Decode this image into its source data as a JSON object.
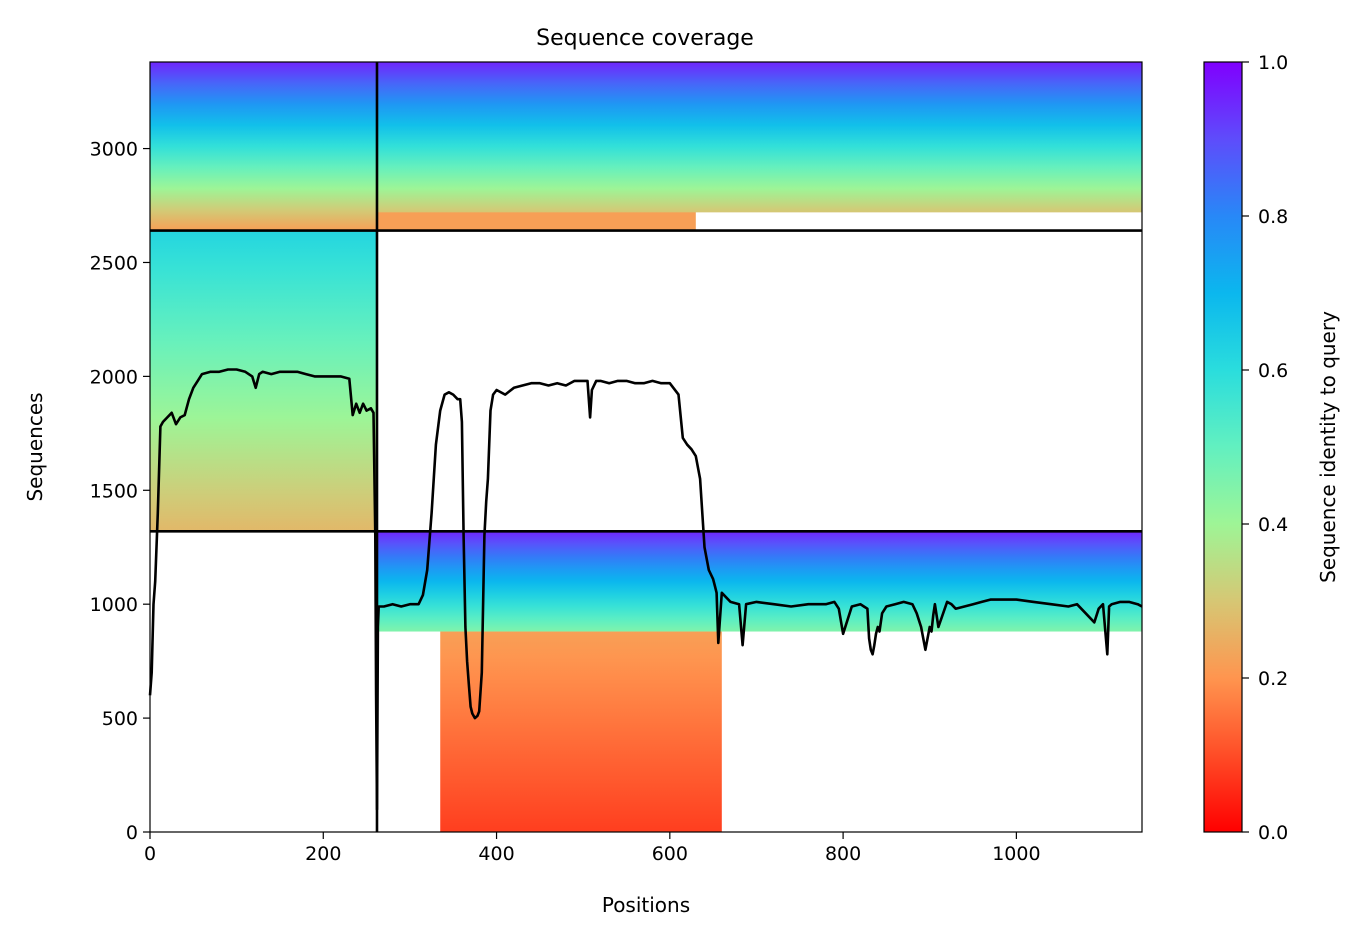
{
  "chart_data": {
    "type": "heatmap",
    "title": "Sequence coverage",
    "xlabel": "Positions",
    "ylabel": "Sequences",
    "colorbar_label": "Sequence identity to query",
    "xlim": [
      0,
      1145
    ],
    "ylim": [
      0,
      3380
    ],
    "xticks": [
      0,
      200,
      400,
      600,
      800,
      1000
    ],
    "yticks": [
      0,
      500,
      1000,
      1500,
      2000,
      2500,
      3000
    ],
    "colorbar_ticks": [
      "0.0",
      "0.2",
      "0.4",
      "0.6",
      "0.8",
      "1.0"
    ],
    "colormap": "rainbow_r",
    "chain_boundaries": {
      "x": [
        262
      ],
      "y": [
        1320,
        2640
      ]
    },
    "blocks": [
      {
        "name": "block-chainA",
        "x": [
          0,
          262
        ],
        "y": [
          1320,
          2640
        ],
        "identity_top": 0.62,
        "identity_bottom": 0.27
      },
      {
        "name": "block-shared-left",
        "x": [
          0,
          262
        ],
        "y": [
          2640,
          3380
        ],
        "identity_top": 0.95,
        "identity_bottom": 0.22
      },
      {
        "name": "block-shared-right",
        "x": [
          262,
          1145
        ],
        "y": [
          2640,
          3380
        ],
        "identity_top": 0.95,
        "identity_bottom": 0.22,
        "bottom_strip_x": [
          262,
          630
        ]
      },
      {
        "name": "block-chainB-top",
        "x": [
          262,
          1145
        ],
        "y": [
          880,
          1320
        ],
        "identity_top": 0.95,
        "identity_bottom": 0.45
      },
      {
        "name": "block-chainB-bottom",
        "x": [
          335,
          660
        ],
        "y": [
          0,
          880
        ],
        "identity_top": 0.22,
        "identity_bottom": 0.08
      }
    ],
    "coverage_line": {
      "x": [
        0,
        2,
        4,
        6,
        9,
        12,
        15,
        20,
        25,
        30,
        35,
        40,
        45,
        50,
        55,
        60,
        70,
        80,
        90,
        100,
        110,
        118,
        122,
        126,
        130,
        140,
        150,
        160,
        170,
        180,
        190,
        200,
        210,
        220,
        230,
        234,
        238,
        242,
        246,
        250,
        255,
        258,
        260,
        261,
        262,
        263,
        264,
        270,
        280,
        290,
        300,
        310,
        315,
        320,
        325,
        330,
        335,
        340,
        345,
        350,
        355,
        358,
        360,
        362,
        364,
        366,
        368,
        370,
        372,
        375,
        378,
        380,
        383,
        386,
        388,
        390,
        393,
        396,
        400,
        410,
        420,
        430,
        440,
        450,
        460,
        470,
        480,
        490,
        500,
        505,
        508,
        510,
        515,
        520,
        530,
        540,
        550,
        560,
        570,
        580,
        590,
        600,
        610,
        615,
        620,
        625,
        630,
        635,
        640,
        645,
        650,
        652,
        654,
        656,
        660,
        670,
        680,
        684,
        688,
        700,
        720,
        740,
        760,
        780,
        790,
        795,
        800,
        810,
        820,
        824,
        828,
        830,
        832,
        834,
        836,
        838,
        840,
        842,
        845,
        850,
        860,
        870,
        880,
        885,
        890,
        895,
        900,
        902,
        904,
        906,
        910,
        920,
        925,
        930,
        940,
        950,
        960,
        970,
        980,
        1000,
        1020,
        1040,
        1060,
        1070,
        1080,
        1090,
        1095,
        1100,
        1105,
        1107,
        1110,
        1120,
        1130,
        1140,
        1145
      ],
      "y": [
        600,
        700,
        1000,
        1100,
        1400,
        1780,
        1800,
        1820,
        1840,
        1790,
        1820,
        1830,
        1900,
        1950,
        1980,
        2010,
        2020,
        2020,
        2030,
        2030,
        2020,
        2000,
        1950,
        2010,
        2020,
        2010,
        2020,
        2020,
        2020,
        2010,
        2000,
        2000,
        2000,
        2000,
        1990,
        1830,
        1880,
        1840,
        1880,
        1850,
        1860,
        1840,
        1300,
        600,
        100,
        900,
        990,
        990,
        1000,
        990,
        1000,
        1000,
        1040,
        1150,
        1400,
        1700,
        1850,
        1920,
        1930,
        1920,
        1900,
        1900,
        1800,
        1300,
        900,
        750,
        650,
        550,
        520,
        500,
        510,
        530,
        700,
        1300,
        1450,
        1550,
        1850,
        1920,
        1940,
        1920,
        1950,
        1960,
        1970,
        1970,
        1960,
        1970,
        1960,
        1980,
        1980,
        1980,
        1820,
        1940,
        1980,
        1980,
        1970,
        1980,
        1980,
        1970,
        1970,
        1980,
        1970,
        1970,
        1920,
        1730,
        1700,
        1680,
        1650,
        1550,
        1250,
        1150,
        1110,
        1080,
        1050,
        830,
        1050,
        1010,
        1000,
        820,
        1000,
        1010,
        1000,
        990,
        1000,
        1000,
        1010,
        980,
        870,
        990,
        1000,
        990,
        980,
        850,
        800,
        780,
        820,
        870,
        900,
        880,
        960,
        990,
        1000,
        1010,
        1000,
        960,
        900,
        800,
        900,
        880,
        950,
        1000,
        900,
        1010,
        1000,
        980,
        990,
        1000,
        1010,
        1020,
        1020,
        1020,
        1010,
        1000,
        990,
        1000,
        960,
        920,
        980,
        1000,
        780,
        990,
        1000,
        1010,
        1010,
        1000,
        990
      ]
    }
  }
}
